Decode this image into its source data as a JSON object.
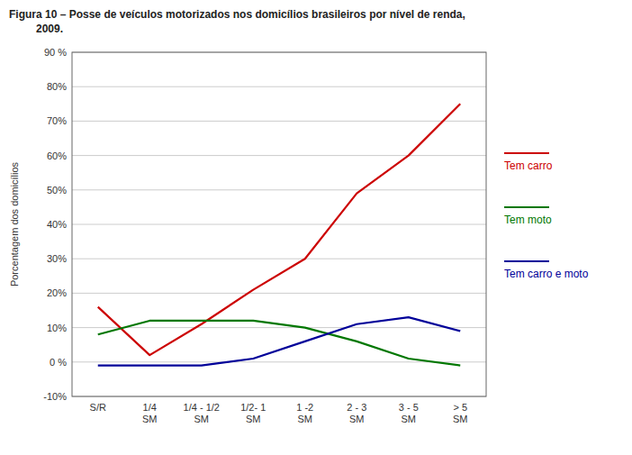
{
  "chart_data": {
    "type": "line",
    "title": "Figura 10 – Posse de veículos motorizados nos domicílios brasileiros por nível de renda,\n2009.",
    "ylabel": "Porcentagem dos domicílios",
    "categories": [
      "S/R",
      "1/4\nSM",
      "1/4 - 1/2\nSM",
      "1/2- 1\nSM",
      "1 -2\nSM",
      "2 - 3\nSM",
      "3 - 5\nSM",
      "> 5\nSM"
    ],
    "series": [
      {
        "name": "Tem carro",
        "color": "#cc0000",
        "values": [
          16,
          2,
          11,
          21,
          30,
          49,
          60,
          75
        ]
      },
      {
        "name": "Tem moto",
        "color": "#007700",
        "values": [
          8,
          12,
          12,
          12,
          10,
          6,
          1,
          -1
        ]
      },
      {
        "name": "Tem carro e moto",
        "color": "#000099",
        "values": [
          -1,
          -1,
          -1,
          1,
          6,
          11,
          13,
          9
        ]
      }
    ],
    "ylim": [
      -10,
      90
    ],
    "yticks": [
      {
        "value": -10,
        "label": "-10%"
      },
      {
        "value": 0,
        "label": "0 %"
      },
      {
        "value": 10,
        "label": "10%"
      },
      {
        "value": 20,
        "label": "20%"
      },
      {
        "value": 30,
        "label": "30%"
      },
      {
        "value": 40,
        "label": "40%"
      },
      {
        "value": 50,
        "label": "50%"
      },
      {
        "value": 60,
        "label": "60%"
      },
      {
        "value": 70,
        "label": "70%"
      },
      {
        "value": 80,
        "label": "80%"
      },
      {
        "value": 90,
        "label": "90 %"
      }
    ],
    "grid": true,
    "legend": "right"
  }
}
